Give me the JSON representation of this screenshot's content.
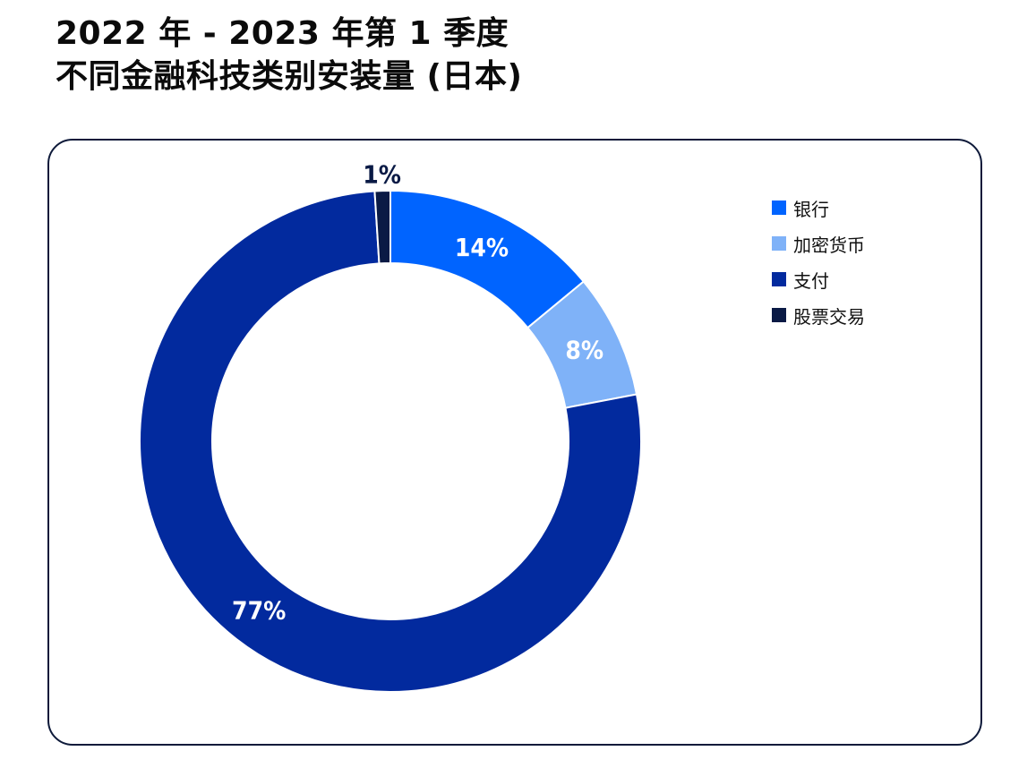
{
  "title": {
    "line1": "2022 年 - 2023 年第 1 季度",
    "line2": "不同金融科技类别安装量 (日本)"
  },
  "chart_data": {
    "type": "pie",
    "subtype": "donut",
    "categories": [
      "银行",
      "加密货币",
      "支付",
      "股票交易"
    ],
    "values": [
      14,
      8,
      77,
      1
    ],
    "data_labels": [
      "14%",
      "8%",
      "77%",
      "1%"
    ],
    "colors": [
      "#0064ff",
      "#7fb2f8",
      "#022a9e",
      "#0a1a45"
    ],
    "label_colors": [
      "#ffffff",
      "#ffffff",
      "#ffffff",
      "#0a1a45"
    ],
    "legend_position": "right"
  }
}
